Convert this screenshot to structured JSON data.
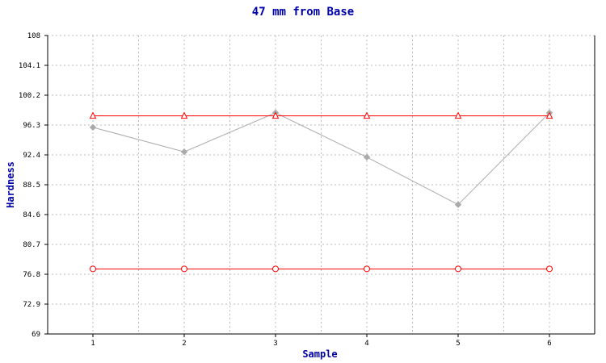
{
  "chart_data": {
    "type": "line",
    "title": "47 mm from Base",
    "xlabel": "Sample",
    "ylabel": "Hardness",
    "x": [
      1,
      2,
      3,
      4,
      5,
      6
    ],
    "xticks": [
      "1",
      "2",
      "3",
      "4",
      "5",
      "6"
    ],
    "ylim": [
      69,
      108
    ],
    "yticks": [
      "69",
      "72.9",
      "76.8",
      "80.7",
      "84.6",
      "88.5",
      "92.4",
      "96.3",
      "100.2",
      "104.1",
      "108"
    ],
    "grid": true,
    "series": [
      {
        "values": [
          96.0,
          92.8,
          97.9,
          92.1,
          85.9,
          97.9
        ],
        "color": "#aaaaaa",
        "marker": "diamond"
      },
      {
        "values": [
          97.5,
          97.5,
          97.5,
          97.5,
          97.5,
          97.5
        ],
        "color": "#ff0000",
        "marker": "triangle"
      },
      {
        "values": [
          77.5,
          77.5,
          77.5,
          77.5,
          77.5,
          77.5
        ],
        "color": "#ff0000",
        "marker": "circle"
      }
    ]
  },
  "colors": {
    "title": "#0000aa",
    "axis_label": "#0000aa",
    "grid": "#bbbbbb",
    "axis": "#000000"
  }
}
